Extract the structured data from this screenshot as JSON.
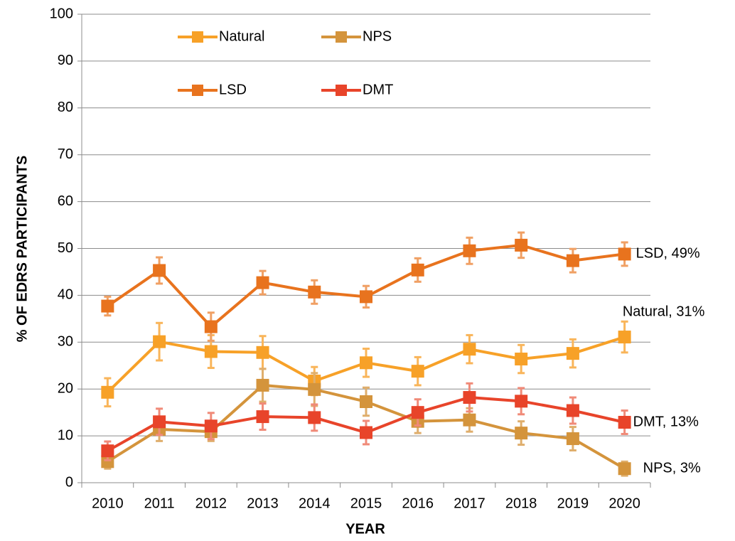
{
  "chart_data": {
    "type": "line",
    "x_label": "YEAR",
    "y_label": "% OF EDRS PARTICIPANTS",
    "categories": [
      "2010",
      "2011",
      "2012",
      "2013",
      "2014",
      "2015",
      "2016",
      "2017",
      "2018",
      "2019",
      "2020"
    ],
    "ylim": [
      0,
      100
    ],
    "yticks": [
      0,
      10,
      20,
      30,
      40,
      50,
      60,
      70,
      80,
      90,
      100
    ],
    "grid": true,
    "series": [
      {
        "name": "Natural",
        "color": "#f7a128",
        "error_color": "#f9b55a",
        "values": [
          19.3,
          30.1,
          28.0,
          27.8,
          21.7,
          25.6,
          23.8,
          28.5,
          26.4,
          27.6,
          31.1
        ],
        "errors": [
          3,
          4,
          3.5,
          3.5,
          3,
          3,
          3,
          3,
          3,
          3,
          3.3
        ],
        "end_label": "Natural, 31%"
      },
      {
        "name": "NPS",
        "color": "#d4943c",
        "error_color": "#dfae6c",
        "values": [
          4.5,
          11.4,
          10.9,
          20.8,
          19.9,
          17.3,
          13.1,
          13.4,
          10.6,
          9.4,
          3.0
        ],
        "errors": [
          1.5,
          2.5,
          2,
          3.5,
          3.5,
          3,
          2.5,
          2.5,
          2.5,
          2.5,
          1.5
        ],
        "end_label": "NPS, 3%"
      },
      {
        "name": "LSD",
        "color": "#e8731e",
        "error_color": "#f0a064",
        "values": [
          37.7,
          45.3,
          33.3,
          42.7,
          40.7,
          39.7,
          45.4,
          49.5,
          50.7,
          47.4,
          48.8
        ],
        "errors": [
          2,
          2.8,
          3,
          2.5,
          2.5,
          2.3,
          2.5,
          2.8,
          2.7,
          2.5,
          2.5
        ],
        "end_label": "LSD, 49%"
      },
      {
        "name": "DMT",
        "color": "#e8442a",
        "error_color": "#f08a78",
        "values": [
          6.8,
          13.0,
          12.1,
          14.1,
          13.9,
          10.7,
          15.0,
          18.2,
          17.4,
          15.4,
          12.9
        ],
        "errors": [
          2,
          2.8,
          2.8,
          2.8,
          2.8,
          2.5,
          2.8,
          3,
          2.8,
          2.8,
          2.5
        ],
        "end_label": "DMT, 13%"
      }
    ]
  }
}
